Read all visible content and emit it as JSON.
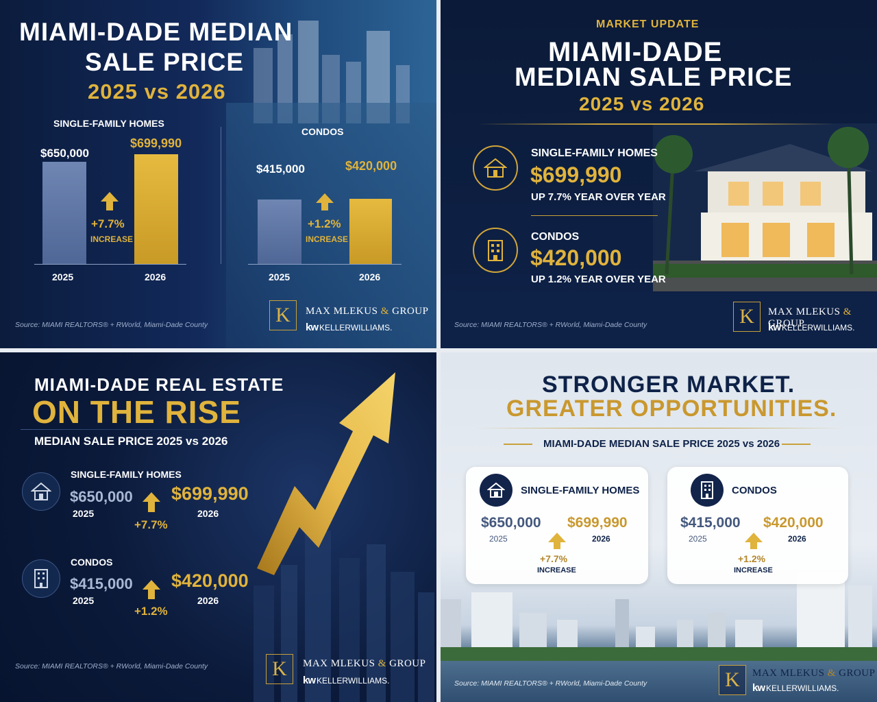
{
  "panel1": {
    "title_line1": "MIAMI-DADE MEDIAN",
    "title_line2": "SALE PRICE",
    "subtitle": "2025 vs 2026",
    "sfh": {
      "label": "SINGLE-FAMILY HOMES",
      "value_2025": "$650,000",
      "value_2026": "$699,990",
      "change": "+7.7%",
      "change_label": "INCREASE",
      "year_2025": "2025",
      "year_2026": "2026"
    },
    "condos": {
      "label": "CONDOS",
      "value_2025": "$415,000",
      "value_2026": "$420,000",
      "change": "+1.2%",
      "change_label": "INCREASE",
      "year_2025": "2025",
      "year_2026": "2026"
    },
    "source": "Source: MIAMI REALTORS® + RWorld, Miami-Dade County"
  },
  "panel2": {
    "kicker": "MARKET UPDATE",
    "title_line1": "MIAMI-DADE",
    "title_line2": "MEDIAN SALE PRICE",
    "subtitle": "2025 vs 2026",
    "sfh": {
      "label": "SINGLE-FAMILY HOMES",
      "value": "$699,990",
      "note": "UP 7.7% YEAR OVER YEAR"
    },
    "condos": {
      "label": "CONDOS",
      "value": "$420,000",
      "note": "UP 1.2% YEAR OVER YEAR"
    },
    "source": "Source: MIAMI REALTORS® + RWorld, Miami-Dade County"
  },
  "panel3": {
    "title_line1": "MIAMI-DADE REAL ESTATE",
    "title_line2": "ON THE RISE",
    "subtitle": "MEDIAN SALE PRICE 2025 vs 2026",
    "sfh": {
      "label": "SINGLE-FAMILY HOMES",
      "value_2025": "$650,000",
      "year_2025": "2025",
      "value_2026": "$699,990",
      "year_2026": "2026",
      "change": "+7.7%"
    },
    "condos": {
      "label": "CONDOS",
      "value_2025": "$415,000",
      "year_2025": "2025",
      "value_2026": "$420,000",
      "year_2026": "2026",
      "change": "+1.2%"
    },
    "source": "Source: MIAMI REALTORS® + RWorld, Miami-Dade County"
  },
  "panel4": {
    "title_line1": "STRONGER MARKET.",
    "title_line2": "GREATER OPPORTUNITIES.",
    "subtitle": "MIAMI-DADE MEDIAN SALE PRICE 2025 vs 2026",
    "sfh": {
      "label": "SINGLE-FAMILY HOMES",
      "value_2025": "$650,000",
      "year_2025": "2025",
      "value_2026": "$699,990",
      "year_2026": "2026",
      "change": "+7.7%",
      "change_label": "INCREASE"
    },
    "condos": {
      "label": "CONDOS",
      "value_2025": "$415,000",
      "year_2025": "2025",
      "value_2026": "$420,000",
      "year_2026": "2026",
      "change": "+1.2%",
      "change_label": "INCREASE"
    },
    "source": "Source: MIAMI REALTORS® + RWorld, Miami-Dade County"
  },
  "brand": {
    "logo_letter": "K",
    "name_part1": "MAX MLEKUS",
    "name_amp": "&",
    "name_part2": "GROUP",
    "kw_mark": "kw",
    "kw_name": "KELLERWILLIAMS."
  },
  "chart_data": [
    {
      "type": "bar",
      "title": "SINGLE-FAMILY HOMES",
      "categories": [
        "2025",
        "2026"
      ],
      "values": [
        650000,
        699990
      ],
      "ylim": [
        0,
        750000
      ]
    },
    {
      "type": "bar",
      "title": "CONDOS",
      "categories": [
        "2025",
        "2026"
      ],
      "values": [
        415000,
        420000
      ],
      "ylim": [
        0,
        480000
      ]
    }
  ],
  "colors": {
    "navy": "#0e2248",
    "gold": "#e0b33c",
    "bar_blue": "#5c74a3"
  }
}
